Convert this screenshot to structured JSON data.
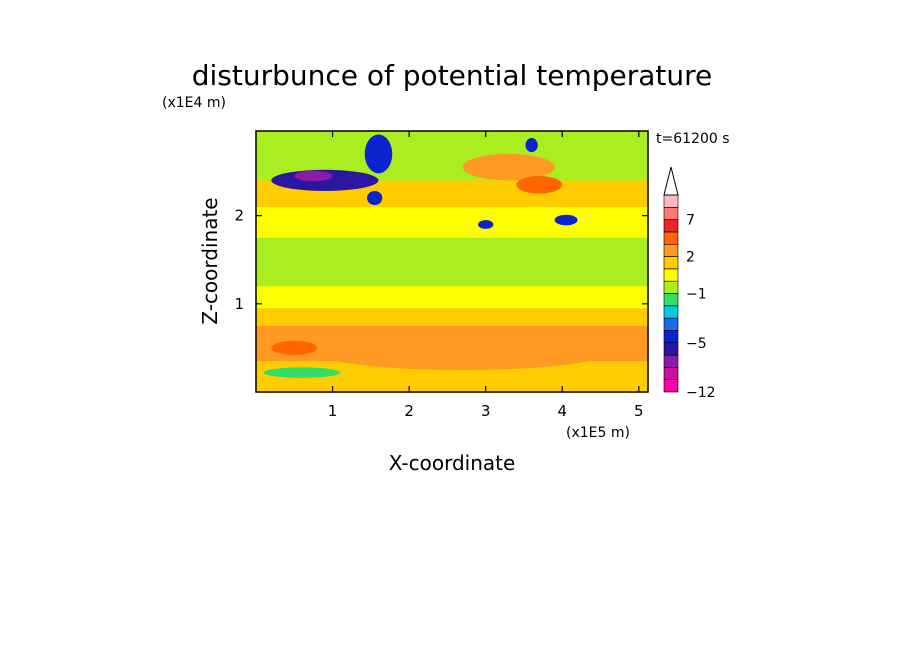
{
  "chart_data": {
    "type": "heatmap",
    "title": "disturbunce of potential temperature",
    "time_label": "t=61200 s",
    "ylabel": "Z-coordinate",
    "xlabel": "X-coordinate",
    "y_unit": "(x1E4 m)",
    "x_unit": "(x1E5 m)",
    "xlim": [
      0,
      5.12
    ],
    "ylim": [
      0,
      2.96
    ],
    "x_ticks": [
      {
        "value": 1,
        "label": "1"
      },
      {
        "value": 2,
        "label": "2"
      },
      {
        "value": 3,
        "label": "3"
      },
      {
        "value": 4,
        "label": "4"
      },
      {
        "value": 5,
        "label": "5"
      }
    ],
    "y_ticks": [
      {
        "value": 1,
        "label": "1"
      },
      {
        "value": 2,
        "label": "2"
      }
    ],
    "colorbar": {
      "levels": [
        -12,
        -10,
        -8,
        -6,
        -5,
        -4,
        -3,
        -2,
        -1,
        0,
        1,
        2,
        3,
        5,
        7,
        9,
        11
      ],
      "colors": [
        "#ff00aa",
        "#cc1199",
        "#8a1aa8",
        "#2a16a0",
        "#0a24d0",
        "#1a6af0",
        "#00ccdd",
        "#33dd66",
        "#aaee22",
        "#ffff00",
        "#ffcc00",
        "#ff9922",
        "#ff6600",
        "#ee2222",
        "#ff7777",
        "#ffbbbb"
      ],
      "tick_labels": [
        {
          "value": 7,
          "label": "7"
        },
        {
          "value": 2,
          "label": "2"
        },
        {
          "value": -1,
          "label": "−1"
        },
        {
          "value": -5,
          "label": "−5"
        },
        {
          "value": -12,
          "label": "−12"
        }
      ],
      "overflow_arrow": "top"
    },
    "field": {
      "background_value": -0.5,
      "layers": [
        {
          "z": [
            0,
            0.35
          ],
          "value": 1.5
        },
        {
          "z": [
            0.35,
            0.75
          ],
          "value": 2.2
        },
        {
          "z": [
            0.75,
            0.95
          ],
          "value": 1.3
        },
        {
          "z": [
            0.95,
            1.2
          ],
          "value": 0.5
        },
        {
          "z": [
            1.2,
            1.45
          ],
          "value": -0.5
        },
        {
          "z": [
            1.45,
            1.75
          ],
          "value": -0.5
        },
        {
          "z": [
            1.75,
            2.1
          ],
          "value": 0.5
        },
        {
          "z": [
            2.1,
            2.4
          ],
          "value": 1.3
        },
        {
          "z": [
            2.4,
            2.96
          ],
          "value": -0.3
        }
      ],
      "features": [
        {
          "x": 0.9,
          "z": 2.4,
          "dx": 0.7,
          "dz": 0.12,
          "value": -5.5
        },
        {
          "x": 0.75,
          "z": 2.45,
          "dx": 0.25,
          "dz": 0.06,
          "value": -7
        },
        {
          "x": 1.6,
          "z": 2.7,
          "dx": 0.18,
          "dz": 0.22,
          "value": -5
        },
        {
          "x": 1.55,
          "z": 2.2,
          "dx": 0.1,
          "dz": 0.08,
          "value": -5
        },
        {
          "x": 3.6,
          "z": 2.8,
          "dx": 0.08,
          "dz": 0.08,
          "value": -5
        },
        {
          "x": 4.05,
          "z": 1.95,
          "dx": 0.15,
          "dz": 0.06,
          "value": -5
        },
        {
          "x": 3.0,
          "z": 1.9,
          "dx": 0.1,
          "dz": 0.05,
          "value": -5
        },
        {
          "x": 0.6,
          "z": 0.22,
          "dx": 0.5,
          "dz": 0.06,
          "value": -1.5
        },
        {
          "x": 2.7,
          "z": 0.45,
          "dx": 1.9,
          "dz": 0.2,
          "value": 2.5
        },
        {
          "x": 0.5,
          "z": 0.5,
          "dx": 0.3,
          "dz": 0.08,
          "value": 3.5
        },
        {
          "x": 3.3,
          "z": 2.55,
          "dx": 0.6,
          "dz": 0.15,
          "value": 2.5
        },
        {
          "x": 3.7,
          "z": 2.35,
          "dx": 0.3,
          "dz": 0.1,
          "value": 3.5
        }
      ]
    }
  }
}
